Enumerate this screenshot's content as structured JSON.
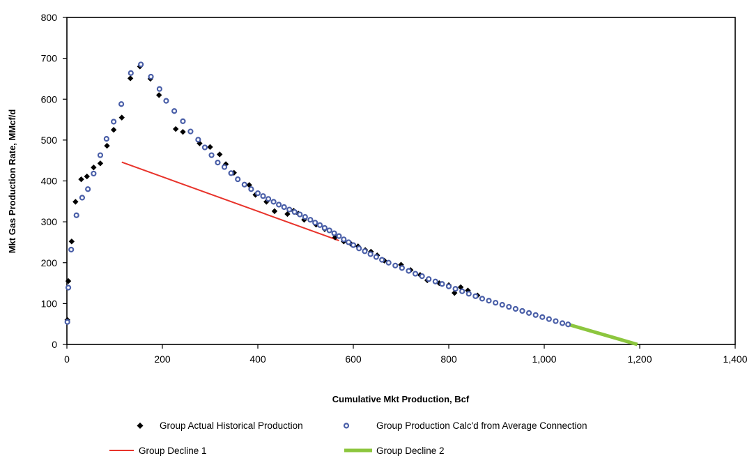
{
  "chart_data": {
    "type": "scatter",
    "title": "",
    "xlabel": "Cumulative Mkt Production, Bcf",
    "ylabel": "Mkt Gas Production Rate, MMcf/d",
    "xlim": [
      0,
      1400
    ],
    "ylim": [
      0,
      800
    ],
    "x_ticks": [
      0,
      200,
      400,
      600,
      800,
      1000,
      1200,
      1400
    ],
    "x_tick_labels": [
      "0",
      "200",
      "400",
      "600",
      "800",
      "1,000",
      "1,200",
      "1,400"
    ],
    "y_ticks": [
      0,
      100,
      200,
      300,
      400,
      500,
      600,
      700,
      800
    ],
    "y_tick_labels": [
      "0",
      "100",
      "200",
      "300",
      "400",
      "500",
      "600",
      "700",
      "800"
    ],
    "grid": false,
    "legend_position": "bottom",
    "colors": {
      "actual": "#000000",
      "calc": "#4a5fa8",
      "decline1": "#e8332b",
      "decline2": "#8cc63e"
    },
    "series": [
      {
        "name": "Group Actual Historical Production",
        "type": "scatter",
        "marker": "diamond",
        "x": [
          1,
          3,
          10,
          18,
          30,
          42,
          56,
          70,
          84,
          98,
          115,
          133,
          153,
          175,
          193,
          228,
          243,
          278,
          300,
          320,
          333,
          350,
          382,
          395,
          418,
          435,
          462,
          475,
          485,
          497,
          522,
          540,
          562,
          580,
          595,
          610,
          625,
          637,
          650,
          665,
          700,
          720,
          740,
          755,
          780,
          800,
          812,
          825,
          840,
          860
        ],
        "y": [
          60,
          155,
          252,
          349,
          404,
          411,
          433,
          443,
          486,
          525,
          555,
          651,
          680,
          650,
          610,
          527,
          520,
          492,
          483,
          465,
          441,
          420,
          390,
          366,
          349,
          326,
          319,
          327,
          320,
          305,
          293,
          282,
          262,
          252,
          246,
          240,
          231,
          227,
          218,
          205,
          195,
          182,
          170,
          157,
          150,
          145,
          126,
          140,
          132,
          120
        ]
      },
      {
        "name": "Group Production Calc'd from Average Connection",
        "type": "scatter",
        "marker": "circle",
        "x": [
          1,
          3,
          9,
          20,
          32,
          44,
          56,
          70,
          83,
          98,
          114,
          134,
          155,
          176,
          194,
          208,
          225,
          243,
          259,
          275,
          289,
          303,
          316,
          330,
          344,
          358,
          372,
          386,
          400,
          411,
          422,
          433,
          444,
          455,
          466,
          477,
          488,
          499,
          510,
          520,
          530,
          540,
          550,
          560,
          570,
          580,
          590,
          600,
          612,
          624,
          636,
          648,
          660,
          674,
          688,
          702,
          716,
          730,
          744,
          758,
          772,
          786,
          800,
          814,
          828,
          842,
          856,
          870,
          884,
          898,
          912,
          926,
          940,
          954,
          968,
          982,
          996,
          1010,
          1024,
          1038,
          1050
        ],
        "y": [
          55,
          139,
          232,
          316,
          359,
          380,
          418,
          463,
          503,
          545,
          588,
          664,
          685,
          655,
          625,
          596,
          571,
          546,
          521,
          501,
          482,
          463,
          445,
          434,
          419,
          404,
          391,
          380,
          370,
          363,
          356,
          349,
          342,
          336,
          330,
          324,
          318,
          312,
          305,
          298,
          292,
          285,
          279,
          272,
          265,
          257,
          250,
          243,
          235,
          228,
          221,
          214,
          207,
          200,
          193,
          187,
          180,
          173,
          167,
          160,
          154,
          148,
          142,
          136,
          130,
          124,
          118,
          112,
          107,
          102,
          97,
          92,
          87,
          82,
          77,
          72,
          67,
          62,
          57,
          52,
          49
        ]
      },
      {
        "name": "Group Decline 1",
        "type": "line",
        "x": [
          115,
          570
        ],
        "y": [
          446,
          254
        ]
      },
      {
        "name": "Group Decline 2",
        "type": "line",
        "x": [
          1050,
          1195
        ],
        "y": [
          49,
          0
        ]
      }
    ]
  }
}
